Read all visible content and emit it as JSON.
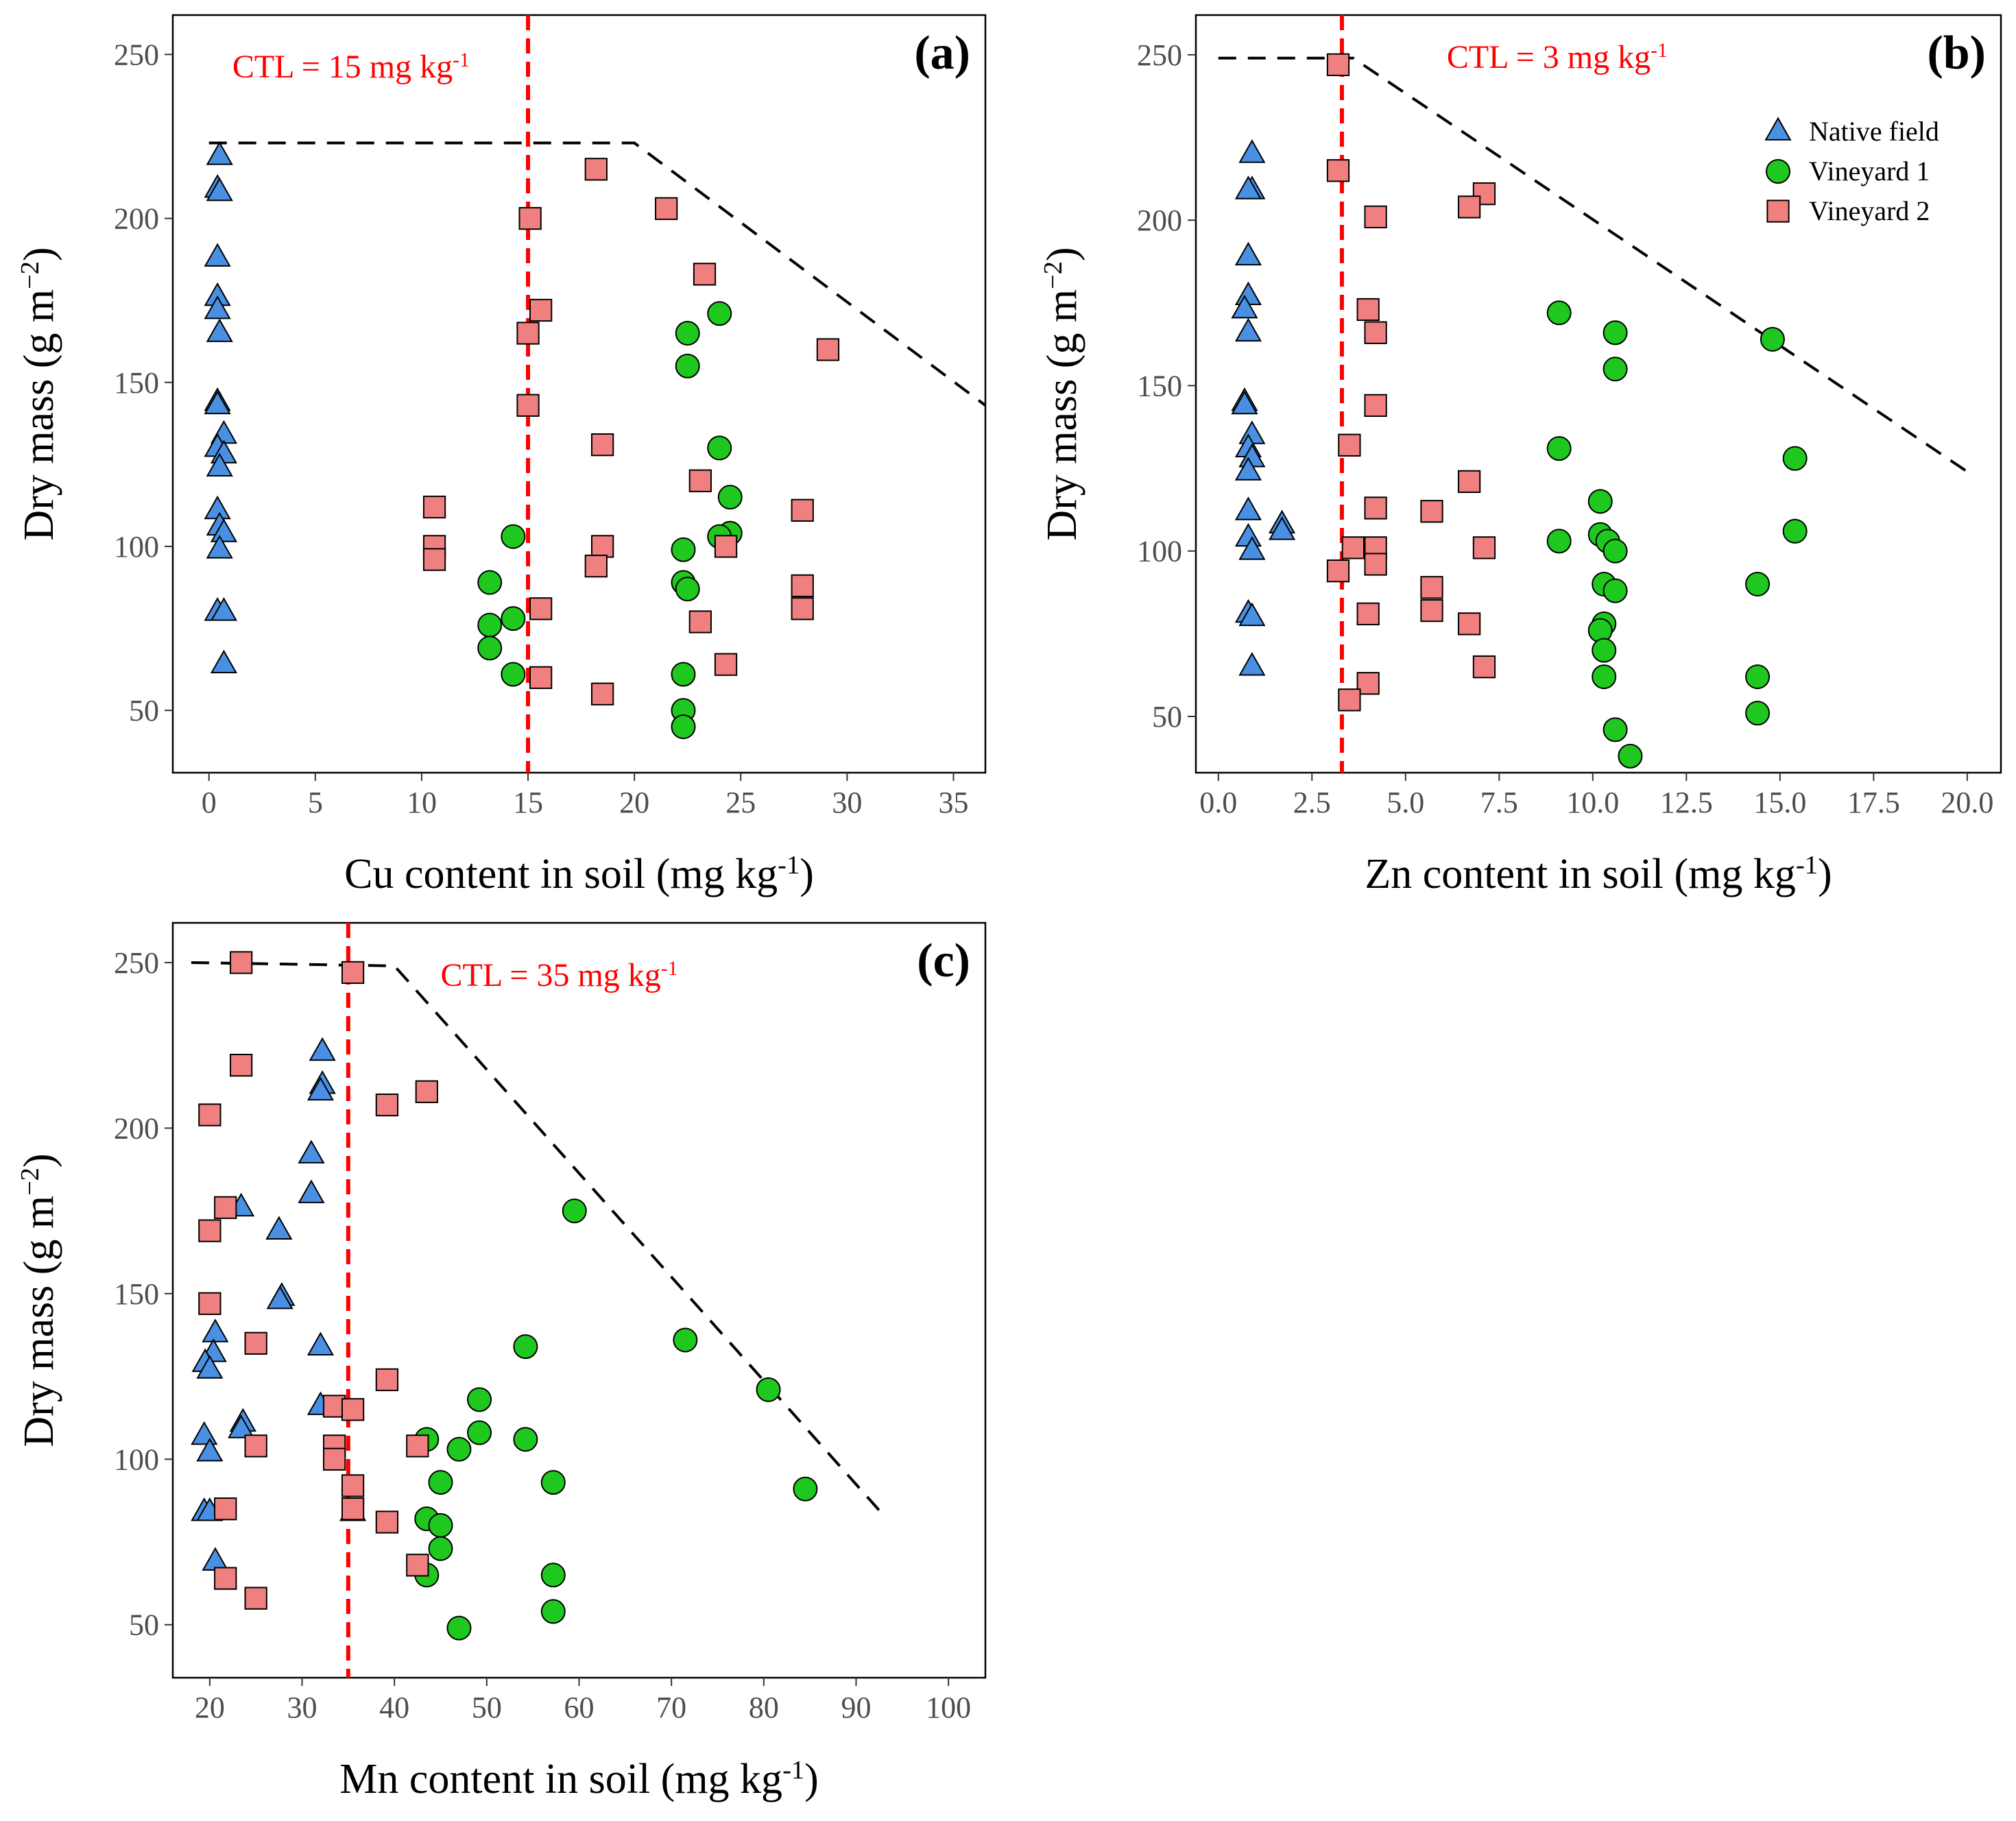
{
  "chart_data": [
    {
      "id": "a",
      "type": "scatter",
      "panel_label": "(a)",
      "xlabel": "Cu content in soil (mg kg",
      "xlabel_sup": "-1",
      "xlabel_end": ")",
      "ylabel": "Dry mass (g m",
      "ylabel_sup": "−2",
      "ylabel_end": ")",
      "xlim": [
        -1.7,
        36.5
      ],
      "ylim": [
        31,
        262
      ],
      "xticks": [
        0,
        5,
        10,
        15,
        20,
        25,
        30,
        35
      ],
      "xtick_labels": [
        "0",
        "5",
        "10",
        "15",
        "20",
        "25",
        "30",
        "35"
      ],
      "yticks": [
        50,
        100,
        150,
        200,
        250
      ],
      "ytick_labels": [
        "50",
        "100",
        "150",
        "200",
        "250"
      ],
      "ctl": {
        "value": 15,
        "text": "CTL = 15 mg kg",
        "text_sup": "-1",
        "text_x": 1.1,
        "text_y": 243
      },
      "boundary": [
        [
          0,
          223
        ],
        [
          20,
          223
        ],
        [
          36.5,
          143
        ]
      ],
      "series": [
        {
          "name": "Native field",
          "marker": "triangle",
          "color": "#4a90e2",
          "points": [
            [
              0.5,
              219
            ],
            [
              0.4,
              209
            ],
            [
              0.5,
              208
            ],
            [
              0.4,
              188
            ],
            [
              0.4,
              176
            ],
            [
              0.4,
              172
            ],
            [
              0.5,
              165
            ],
            [
              0.4,
              144
            ],
            [
              0.4,
              143
            ],
            [
              0.7,
              134
            ],
            [
              0.4,
              130
            ],
            [
              0.7,
              128
            ],
            [
              0.5,
              124
            ],
            [
              0.4,
              111
            ],
            [
              0.5,
              106
            ],
            [
              0.7,
              104
            ],
            [
              0.5,
              99
            ],
            [
              0.4,
              80
            ],
            [
              0.7,
              80
            ],
            [
              0.7,
              64
            ]
          ]
        },
        {
          "name": "Vineyard 1",
          "marker": "circle",
          "color": "#1ec81e",
          "points": [
            [
              24.0,
              171
            ],
            [
              22.5,
              165
            ],
            [
              22.5,
              155
            ],
            [
              24.0,
              130
            ],
            [
              24.5,
              115
            ],
            [
              24.5,
              104
            ],
            [
              24.0,
              103
            ],
            [
              14.3,
              103
            ],
            [
              22.3,
              99
            ],
            [
              13.2,
              89
            ],
            [
              22.3,
              89
            ],
            [
              22.5,
              87
            ],
            [
              14.3,
              78
            ],
            [
              13.2,
              76
            ],
            [
              13.2,
              69
            ],
            [
              14.3,
              61
            ],
            [
              22.3,
              61
            ],
            [
              22.3,
              50
            ],
            [
              22.3,
              45
            ]
          ]
        },
        {
          "name": "Vineyard 2",
          "marker": "square",
          "color": "#f08080",
          "points": [
            [
              18.2,
              215
            ],
            [
              21.5,
              203
            ],
            [
              15.1,
              200
            ],
            [
              23.3,
              183
            ],
            [
              15.6,
              172
            ],
            [
              15.0,
              165
            ],
            [
              29.1,
              160
            ],
            [
              15.0,
              143
            ],
            [
              18.5,
              131
            ],
            [
              23.1,
              120
            ],
            [
              10.6,
              112
            ],
            [
              27.9,
              111
            ],
            [
              10.6,
              100
            ],
            [
              18.5,
              100
            ],
            [
              24.3,
              100
            ],
            [
              10.6,
              96
            ],
            [
              18.2,
              94
            ],
            [
              27.9,
              88
            ],
            [
              27.9,
              81
            ],
            [
              15.6,
              81
            ],
            [
              23.1,
              77
            ],
            [
              24.3,
              64
            ],
            [
              15.6,
              60
            ],
            [
              18.5,
              55
            ]
          ]
        }
      ]
    },
    {
      "id": "b",
      "type": "scatter",
      "panel_label": "(b)",
      "xlabel": "Zn content in soil (mg kg",
      "xlabel_sup": "-1",
      "xlabel_end": ")",
      "ylabel": "Dry mass (g m",
      "ylabel_sup": "−2",
      "ylabel_end": ")",
      "xlim": [
        -0.6,
        20.9
      ],
      "ylim": [
        33,
        262
      ],
      "xticks": [
        0,
        2.5,
        5,
        7.5,
        10,
        12.5,
        15,
        17.5,
        20
      ],
      "xtick_labels": [
        "0.0",
        "2.5",
        "5.0",
        "7.5",
        "10.0",
        "12.5",
        "15.0",
        "17.5",
        "20.0"
      ],
      "yticks": [
        50,
        100,
        150,
        200,
        250
      ],
      "ytick_labels": [
        "50",
        "100",
        "150",
        "200",
        "250"
      ],
      "ctl": {
        "value": 3.3,
        "text": "CTL = 3 mg kg",
        "text_sup": "-1",
        "text_x": 6.1,
        "text_y": 246
      },
      "boundary": [
        [
          0,
          249
        ],
        [
          3.6,
          249
        ],
        [
          20,
          124
        ]
      ],
      "legend": {
        "position": "top-right",
        "entries": [
          "Native field",
          "Vineyard 1",
          "Vineyard 2"
        ]
      },
      "series": [
        {
          "name": "Native field",
          "marker": "triangle",
          "color": "#4a90e2",
          "points": [
            [
              0.9,
              220
            ],
            [
              0.9,
              209
            ],
            [
              0.8,
              209
            ],
            [
              0.8,
              189
            ],
            [
              0.8,
              177
            ],
            [
              0.7,
              173
            ],
            [
              0.8,
              166
            ],
            [
              0.7,
              145
            ],
            [
              0.7,
              144
            ],
            [
              0.9,
              135
            ],
            [
              0.8,
              131
            ],
            [
              0.9,
              128
            ],
            [
              0.8,
              124
            ],
            [
              0.8,
              112
            ],
            [
              1.7,
              108
            ],
            [
              1.7,
              106
            ],
            [
              0.8,
              104
            ],
            [
              0.9,
              100
            ],
            [
              0.8,
              81
            ],
            [
              0.9,
              80
            ],
            [
              0.9,
              65
            ]
          ]
        },
        {
          "name": "Vineyard 1",
          "marker": "circle",
          "color": "#1ec81e",
          "points": [
            [
              9.1,
              172
            ],
            [
              10.6,
              166
            ],
            [
              14.8,
              164
            ],
            [
              10.6,
              155
            ],
            [
              9.1,
              131
            ],
            [
              15.4,
              128
            ],
            [
              10.2,
              115
            ],
            [
              15.4,
              106
            ],
            [
              10.2,
              105
            ],
            [
              10.4,
              103
            ],
            [
              9.1,
              103
            ],
            [
              10.6,
              100
            ],
            [
              10.3,
              90
            ],
            [
              14.4,
              90
            ],
            [
              10.6,
              88
            ],
            [
              10.3,
              78
            ],
            [
              10.2,
              76
            ],
            [
              10.3,
              70
            ],
            [
              14.4,
              62
            ],
            [
              10.3,
              62
            ],
            [
              14.4,
              51
            ],
            [
              10.6,
              46
            ],
            [
              11.0,
              38
            ]
          ]
        },
        {
          "name": "Vineyard 2",
          "marker": "square",
          "color": "#f08080",
          "points": [
            [
              3.2,
              247
            ],
            [
              3.2,
              215
            ],
            [
              7.1,
              208
            ],
            [
              6.7,
              204
            ],
            [
              4.2,
              201
            ],
            [
              4.0,
              173
            ],
            [
              4.2,
              166
            ],
            [
              4.2,
              144
            ],
            [
              3.5,
              132
            ],
            [
              6.7,
              121
            ],
            [
              5.7,
              112
            ],
            [
              4.2,
              113
            ],
            [
              7.1,
              101
            ],
            [
              4.2,
              101
            ],
            [
              3.6,
              101
            ],
            [
              4.2,
              96
            ],
            [
              3.2,
              94
            ],
            [
              5.7,
              89
            ],
            [
              5.7,
              82
            ],
            [
              4.0,
              81
            ],
            [
              6.7,
              78
            ],
            [
              7.1,
              65
            ],
            [
              4.0,
              60
            ],
            [
              3.5,
              55
            ]
          ]
        }
      ]
    },
    {
      "id": "c",
      "type": "scatter",
      "panel_label": "(c)",
      "xlabel": "Mn content in soil (mg kg",
      "xlabel_sup": "-1",
      "xlabel_end": ")",
      "ylabel": "Dry mass (g m",
      "ylabel_sup": "−2",
      "ylabel_end": ")",
      "xlim": [
        16,
        104
      ],
      "ylim": [
        34,
        262
      ],
      "xticks": [
        20,
        30,
        40,
        50,
        60,
        70,
        80,
        90,
        100
      ],
      "xtick_labels": [
        "20",
        "30",
        "40",
        "50",
        "60",
        "70",
        "80",
        "90",
        "100"
      ],
      "yticks": [
        50,
        100,
        150,
        200,
        250
      ],
      "ytick_labels": [
        "50",
        "100",
        "150",
        "200",
        "250"
      ],
      "ctl": {
        "value": 35,
        "text": "CTL = 35 mg kg",
        "text_sup": "-1",
        "text_x": 45,
        "text_y": 243
      },
      "boundary": [
        [
          18,
          250
        ],
        [
          40,
          249
        ],
        [
          93,
          83
        ]
      ],
      "series": [
        {
          "name": "Native field",
          "marker": "triangle",
          "color": "#4a90e2",
          "points": [
            [
              32.2,
              223
            ],
            [
              32.2,
              213
            ],
            [
              32.0,
              211
            ],
            [
              31.0,
              192
            ],
            [
              31.0,
              180
            ],
            [
              23.4,
              176
            ],
            [
              27.5,
              169
            ],
            [
              27.8,
              149
            ],
            [
              27.6,
              148
            ],
            [
              20.6,
              138
            ],
            [
              32.0,
              134
            ],
            [
              20.4,
              132
            ],
            [
              19.5,
              129
            ],
            [
              20.0,
              127
            ],
            [
              32.0,
              116
            ],
            [
              23.6,
              111
            ],
            [
              23.4,
              109
            ],
            [
              19.4,
              107
            ],
            [
              20.0,
              102
            ],
            [
              19.4,
              84
            ],
            [
              20.0,
              84
            ],
            [
              35.5,
              84
            ],
            [
              20.6,
              69
            ]
          ]
        },
        {
          "name": "Vineyard 1",
          "marker": "circle",
          "color": "#1ec81e",
          "points": [
            [
              59.5,
              175
            ],
            [
              71.5,
              136
            ],
            [
              54.2,
              134
            ],
            [
              80.5,
              121
            ],
            [
              49.2,
              118
            ],
            [
              49.2,
              108
            ],
            [
              54.2,
              106
            ],
            [
              43.5,
              106
            ],
            [
              47.0,
              103
            ],
            [
              57.2,
              93
            ],
            [
              45.0,
              93
            ],
            [
              84.5,
              91
            ],
            [
              43.5,
              82
            ],
            [
              45.0,
              80
            ],
            [
              45.0,
              73
            ],
            [
              57.2,
              65
            ],
            [
              43.5,
              65
            ],
            [
              57.2,
              54
            ],
            [
              47.0,
              49
            ]
          ]
        },
        {
          "name": "Vineyard 2",
          "marker": "square",
          "color": "#f08080",
          "points": [
            [
              23.4,
              250
            ],
            [
              35.5,
              247
            ],
            [
              23.4,
              219
            ],
            [
              43.5,
              211
            ],
            [
              39.2,
              207
            ],
            [
              20.0,
              204
            ],
            [
              21.7,
              176
            ],
            [
              20.0,
              169
            ],
            [
              20.0,
              147
            ],
            [
              25.0,
              135
            ],
            [
              39.2,
              124
            ],
            [
              33.5,
              116
            ],
            [
              35.5,
              115
            ],
            [
              25.0,
              104
            ],
            [
              33.5,
              104
            ],
            [
              42.5,
              104
            ],
            [
              33.5,
              100
            ],
            [
              35.5,
              92
            ],
            [
              35.5,
              85
            ],
            [
              21.7,
              85
            ],
            [
              39.2,
              81
            ],
            [
              42.5,
              68
            ],
            [
              21.7,
              64
            ],
            [
              25.0,
              58
            ]
          ]
        }
      ]
    }
  ]
}
